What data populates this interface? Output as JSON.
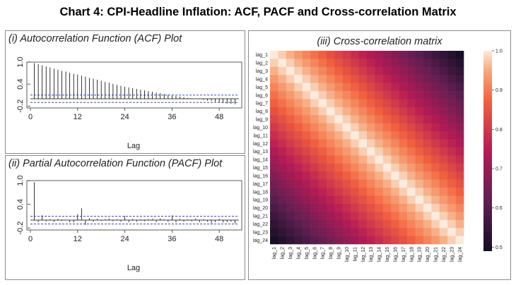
{
  "title": "Chart 4: CPI-Headline Inflation: ACF, PACF and Cross-correlation Matrix",
  "chart_data": [
    {
      "type": "bar",
      "subtype": "acf",
      "title": "(i) Autocorrelation Function (ACF) Plot",
      "xlabel": "Lag",
      "ylabel": "",
      "xlim": [
        0,
        53
      ],
      "ylim": [
        -0.25,
        1.0
      ],
      "xticks": [
        "0",
        "12",
        "24",
        "36",
        "48"
      ],
      "yticks": [
        "-0.2",
        "0.4",
        "1.0"
      ],
      "confidence_bounds": [
        0.1,
        -0.1
      ],
      "lags": [
        1,
        2,
        3,
        4,
        5,
        6,
        7,
        8,
        9,
        10,
        11,
        12,
        13,
        14,
        15,
        16,
        17,
        18,
        19,
        20,
        21,
        22,
        23,
        24,
        25,
        26,
        27,
        28,
        29,
        30,
        31,
        32,
        33,
        34,
        35,
        36,
        37,
        38,
        39,
        40,
        41,
        42,
        43,
        44,
        45,
        46,
        47,
        48,
        49,
        50,
        51,
        52
      ],
      "values": [
        0.97,
        0.94,
        0.91,
        0.88,
        0.85,
        0.82,
        0.79,
        0.76,
        0.74,
        0.71,
        0.68,
        0.66,
        0.63,
        0.6,
        0.57,
        0.55,
        0.52,
        0.49,
        0.46,
        0.44,
        0.41,
        0.38,
        0.35,
        0.33,
        0.31,
        0.29,
        0.27,
        0.25,
        0.23,
        0.21,
        0.19,
        0.17,
        0.15,
        0.13,
        0.11,
        0.09,
        0.08,
        0.06,
        0.04,
        0.02,
        0.01,
        0.0,
        -0.01,
        -0.03,
        -0.05,
        -0.06,
        -0.08,
        -0.1,
        -0.12,
        -0.13,
        -0.14,
        -0.15
      ]
    },
    {
      "type": "bar",
      "subtype": "pacf",
      "title": "(ii) Partial Autocorrelation Function (PACF) Plot",
      "xlabel": "Lag",
      "ylabel": "",
      "xlim": [
        0,
        53
      ],
      "ylim": [
        -0.25,
        1.0
      ],
      "xticks": [
        "0",
        "12",
        "24",
        "36",
        "48"
      ],
      "yticks": [
        "-0.2",
        "0.4",
        "1.0"
      ],
      "confidence_bounds": [
        0.1,
        -0.1
      ],
      "lags": [
        1,
        2,
        3,
        4,
        5,
        6,
        7,
        8,
        9,
        10,
        11,
        12,
        13,
        14,
        15,
        16,
        17,
        18,
        19,
        20,
        21,
        22,
        23,
        24,
        25,
        26,
        27,
        28,
        29,
        30,
        31,
        32,
        33,
        34,
        35,
        36,
        37,
        38,
        39,
        40,
        41,
        42,
        43,
        44,
        45,
        46,
        47,
        48,
        49,
        50,
        51,
        52
      ],
      "values": [
        0.96,
        -0.05,
        0.12,
        -0.03,
        0.02,
        -0.04,
        0.03,
        -0.02,
        0.01,
        -0.05,
        -0.06,
        0.15,
        0.3,
        -0.12,
        0.05,
        -0.04,
        0.03,
        -0.02,
        0.02,
        0.04,
        -0.03,
        0.02,
        -0.04,
        0.1,
        -0.05,
        0.03,
        -0.04,
        0.02,
        -0.03,
        0.02,
        0.03,
        -0.05,
        0.04,
        0.02,
        -0.04,
        0.12,
        -0.06,
        0.03,
        -0.04,
        0.02,
        -0.03,
        0.04,
        -0.05,
        0.02,
        -0.04,
        -0.08,
        -0.05,
        0.03,
        -0.06,
        -0.05,
        -0.04,
        -0.08
      ]
    },
    {
      "type": "heatmap",
      "title": "(iii) Cross-correlation matrix",
      "row_labels": [
        "lag_1",
        "lag_2",
        "lag_3",
        "lag_4",
        "lag_5",
        "lag_6",
        "lag_7",
        "lag_8",
        "lag_9",
        "lag_10",
        "lag_11",
        "lag_12",
        "lag_13",
        "lag_14",
        "lag_15",
        "lag_16",
        "lag_17",
        "lag_18",
        "lag_19",
        "lag_20",
        "lag_21",
        "lag_22",
        "lag_23",
        "lag_24"
      ],
      "col_labels": [
        "lag_1",
        "lag_2",
        "lag_3",
        "lag_4",
        "lag_5",
        "lag_6",
        "lag_7",
        "lag_8",
        "lag_9",
        "lag_10",
        "lag_11",
        "lag_12",
        "lag_13",
        "lag_14",
        "lag_15",
        "lag_16",
        "lag_17",
        "lag_18",
        "lag_19",
        "lag_20",
        "lag_21",
        "lag_22",
        "lag_23",
        "lag_24"
      ],
      "value_rule": "corr(lag_i, lag_j) = 1 - 0.022 * |i - j|",
      "value_range": [
        0.49,
        1.0
      ],
      "colorbar_ticks": [
        "1.0",
        "0.9",
        "0.8",
        "0.7",
        "0.6",
        "0.5"
      ],
      "colormap": "rocket"
    }
  ]
}
